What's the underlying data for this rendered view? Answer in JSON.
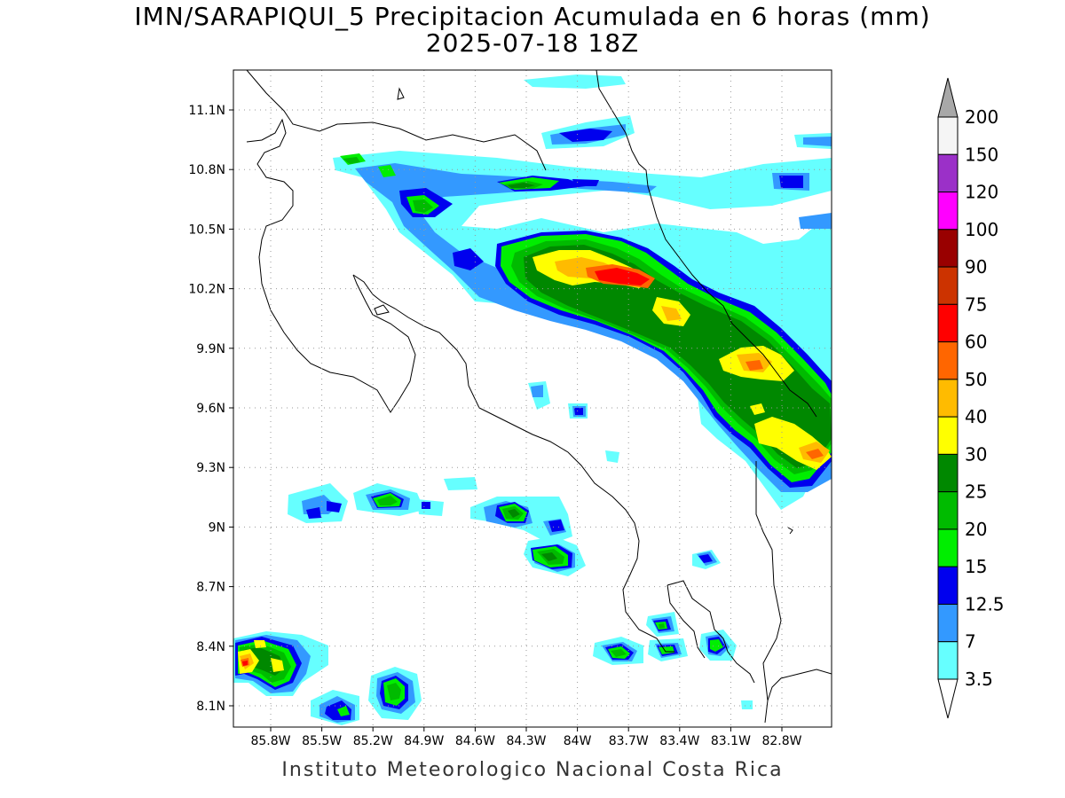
{
  "title": "IMN/SARAPIQUI_5 Precipitacion Acumulada en 6 horas (mm)",
  "subtitle": "2025-07-18 18Z",
  "footer": "Instituto Meteorologico Nacional Costa Rica",
  "map": {
    "lat_labels": [
      "11.1N",
      "10.8N",
      "10.5N",
      "10.2N",
      "9.9N",
      "9.6N",
      "9.3N",
      "9N",
      "8.7N",
      "8.4N",
      "8.1N"
    ],
    "lon_labels": [
      "85.8W",
      "85.5W",
      "85.2W",
      "84.9W",
      "84.6W",
      "84.3W",
      "84W",
      "83.7W",
      "83.4W",
      "83.1W",
      "82.8W"
    ],
    "grid": true
  },
  "colorbar": {
    "labels": [
      "200",
      "150",
      "120",
      "100",
      "90",
      "75",
      "60",
      "50",
      "40",
      "30",
      "25",
      "20",
      "15",
      "12.5",
      "7",
      "3.5"
    ],
    "colors": [
      "#f5f5f5",
      "#9b30c8",
      "#ff00ff",
      "#990000",
      "#cc3300",
      "#ff0000",
      "#ff6600",
      "#ffbb00",
      "#ffff00",
      "#008800",
      "#00bb00",
      "#00ee00",
      "#0000ee",
      "#3399ff",
      "#66ffff"
    ],
    "max_color": "#a8a8a8"
  }
}
